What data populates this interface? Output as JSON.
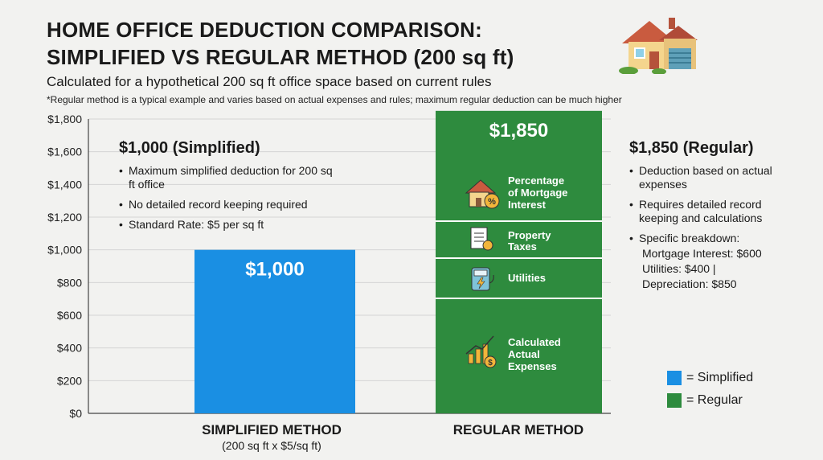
{
  "header": {
    "title_line1": "HOME OFFICE DEDUCTION COMPARISON:",
    "title_line2": "SIMPLIFIED VS REGULAR METHOD (200 sq ft)",
    "subtitle": "Calculated for a hypothetical 200 sq ft office space based on current rules",
    "footnote": "*Regular method is a typical example and varies based on actual expenses and rules; maximum regular deduction can be much higher",
    "logo_icon": "house-icon"
  },
  "colors": {
    "simplified": "#1a8fe3",
    "regular": "#2e8b3e",
    "grid": "#d4d4d4",
    "axis": "#444444"
  },
  "chart_data": {
    "type": "bar",
    "categories": [
      "SIMPLIFIED METHOD",
      "REGULAR METHOD"
    ],
    "category_sublabels": [
      "(200 sq ft x $5/sq ft)",
      ""
    ],
    "values": [
      1000,
      1850
    ],
    "data_labels": [
      "$1,000",
      "$1,850"
    ],
    "ylim": [
      0,
      1800
    ],
    "yticks": [
      0,
      200,
      400,
      600,
      800,
      1000,
      1200,
      1400,
      1600,
      1800
    ],
    "ytick_labels": [
      "$0",
      "$200",
      "$400",
      "$600",
      "$800",
      "$1,000",
      "$1,200",
      "$1,400",
      "$1,600",
      "$1,800"
    ],
    "grid": true,
    "regular_segments": [
      {
        "label": "Percentage of Mortgage Interest",
        "icon": "house-percent-icon"
      },
      {
        "label": "Property Taxes",
        "icon": "document-icon"
      },
      {
        "label": "Utilities",
        "icon": "power-meter-icon"
      },
      {
        "label": "Calculated Actual Expenses",
        "icon": "growth-chart-coins-icon"
      }
    ],
    "legend": [
      {
        "label": "= Simplified",
        "color": "#1a8fe3"
      },
      {
        "label": "= Regular",
        "color": "#2e8b3e"
      }
    ],
    "legend_position": "bottom-right"
  },
  "callouts": {
    "simplified": {
      "title": "$1,000 (Simplified)",
      "bullets": [
        "Maximum simplified deduction for 200 sq ft office",
        "No detailed record keeping required",
        "Standard Rate: $5 per sq ft"
      ]
    },
    "regular": {
      "title": "$1,850 (Regular)",
      "bullets": [
        "Deduction based on actual expenses",
        "Requires detailed record keeping and calculations",
        "Specific breakdown:"
      ],
      "breakdown": [
        "Mortgage Interest: $600",
        "Utilities: $400 |",
        "Depreciation: $850"
      ]
    }
  }
}
